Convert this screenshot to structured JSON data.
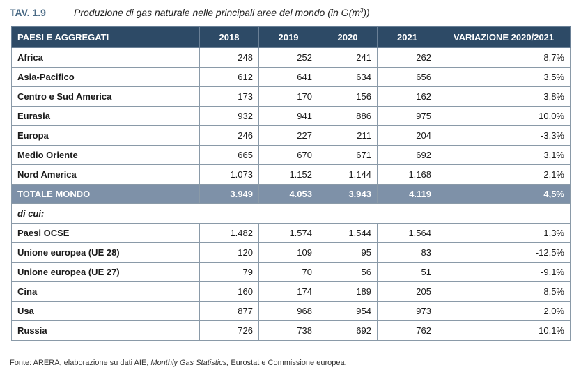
{
  "header": {
    "tav": "TAV. 1.9",
    "title": "Produzione di gas naturale nelle principali aree del mondo (in G(m",
    "title_sup": "3",
    "title_end": "))"
  },
  "table": {
    "columns": [
      "PAESI E AGGREGATI",
      "2018",
      "2019",
      "2020",
      "2021",
      "VARIAZIONE 2020/2021"
    ],
    "rows": [
      [
        "Africa",
        "248",
        "252",
        "241",
        "262",
        "8,7%"
      ],
      [
        "Asia-Pacifico",
        "612",
        "641",
        "634",
        "656",
        "3,5%"
      ],
      [
        "Centro e Sud America",
        "173",
        "170",
        "156",
        "162",
        "3,8%"
      ],
      [
        "Eurasia",
        "932",
        "941",
        "886",
        "975",
        "10,0%"
      ],
      [
        "Europa",
        "246",
        "227",
        "211",
        "204",
        "-3,3%"
      ],
      [
        "Medio Oriente",
        "665",
        "670",
        "671",
        "692",
        "3,1%"
      ],
      [
        "Nord America",
        "1.073",
        "1.152",
        "1.144",
        "1.168",
        "2,1%"
      ]
    ],
    "total": [
      "TOTALE MONDO",
      "3.949",
      "4.053",
      "3.943",
      "4.119",
      "4,5%"
    ],
    "di_cui_label": "di cui:",
    "sub_rows": [
      [
        "Paesi OCSE",
        "1.482",
        "1.574",
        "1.544",
        "1.564",
        "1,3%"
      ],
      [
        "Unione europea (UE 28)",
        "120",
        "109",
        "95",
        "83",
        "-12,5%"
      ],
      [
        "Unione europea (UE 27)",
        "79",
        "70",
        "56",
        "51",
        "-9,1%"
      ],
      [
        "Cina",
        "160",
        "174",
        "189",
        "205",
        "8,5%"
      ],
      [
        "Usa",
        "877",
        "968",
        "954",
        "973",
        "2,0%"
      ],
      [
        "Russia",
        "726",
        "738",
        "692",
        "762",
        "10,1%"
      ]
    ]
  },
  "footnote": {
    "prefix": "Fonte: ARERA, elaborazione su dati AIE, ",
    "italic": "Monthly Gas Statistics,",
    "suffix": " Eurostat e Commissione europea."
  },
  "colors": {
    "header_bg": "#2d4a66",
    "total_bg": "#7e91a8",
    "tav_color": "#4a6a85"
  }
}
